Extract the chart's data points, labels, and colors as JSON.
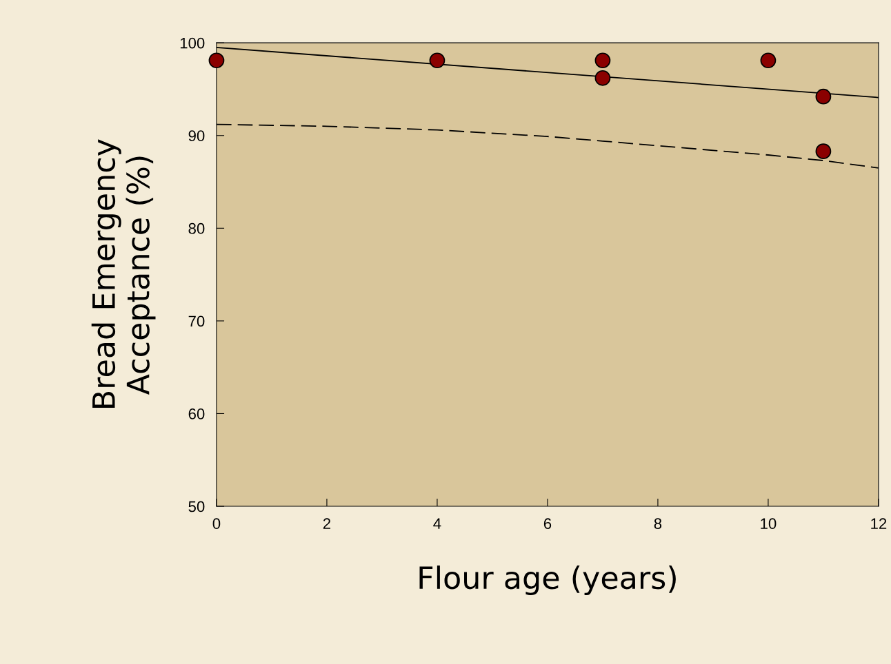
{
  "chart_data": {
    "type": "scatter",
    "xlabel": "Flour age (years)",
    "ylabel": "Bread Emergency\nAcceptance (%)",
    "xlim": [
      0,
      12
    ],
    "xticks": [
      0,
      2,
      4,
      6,
      8,
      10,
      12
    ],
    "ylim": [
      50,
      100
    ],
    "yticks": [
      50,
      60,
      70,
      80,
      90,
      100
    ],
    "grid": false,
    "series": [
      {
        "color": "#8b0000",
        "marker": "circle",
        "x": [
          0,
          4,
          7,
          7,
          10,
          11,
          11
        ],
        "values": [
          98.1,
          98.1,
          98.1,
          96.2,
          98.1,
          94.2,
          88.3
        ]
      },
      {
        "type": "line",
        "color": "#000000",
        "line_style": "solid",
        "marker": "none",
        "x": [
          0,
          12
        ],
        "values": [
          99.5,
          94.1
        ]
      },
      {
        "type": "line",
        "color": "#000000",
        "line_style": "dashed",
        "marker": "none",
        "x": [
          0,
          2,
          4,
          6,
          7,
          8,
          10,
          11,
          12
        ],
        "values": [
          91.2,
          91.0,
          90.6,
          89.9,
          89.4,
          88.9,
          87.9,
          87.3,
          86.5
        ]
      }
    ]
  }
}
